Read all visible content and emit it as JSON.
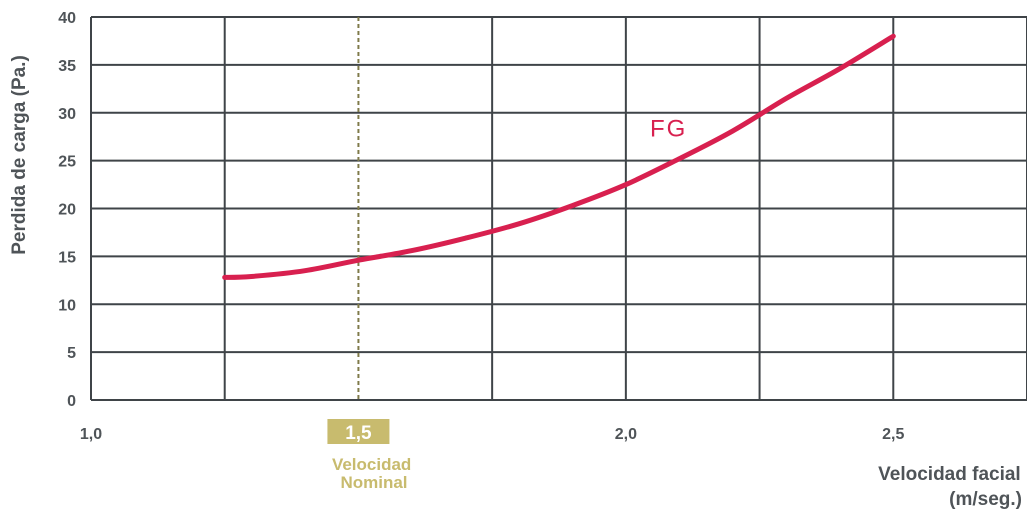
{
  "chart_data": {
    "type": "line",
    "xlabel": [
      "Velocidad facial",
      "(m/seg.)"
    ],
    "ylabel": "Perdida de carga (Pa.)",
    "xlim": [
      1.0,
      2.75
    ],
    "ylim": [
      0,
      40
    ],
    "x_ticks": [
      {
        "value": 1.0,
        "label": "1,0"
      },
      {
        "value": 1.5,
        "label": "1,5"
      },
      {
        "value": 2.0,
        "label": "2,0"
      },
      {
        "value": 2.5,
        "label": "2,5"
      }
    ],
    "y_ticks": [
      {
        "value": 0,
        "label": "0"
      },
      {
        "value": 5,
        "label": "5"
      },
      {
        "value": 10,
        "label": "10"
      },
      {
        "value": 15,
        "label": "15"
      },
      {
        "value": 20,
        "label": "20"
      },
      {
        "value": 25,
        "label": "25"
      },
      {
        "value": 30,
        "label": "30"
      },
      {
        "value": 35,
        "label": "35"
      },
      {
        "value": 40,
        "label": "40"
      }
    ],
    "grid": true,
    "grid_x_step": 0.25,
    "grid_y_step": 5,
    "reference_line": {
      "x": 1.5,
      "label": "1,5",
      "caption": [
        "Velocidad",
        "Nominal"
      ]
    },
    "series": [
      {
        "name": "FG",
        "color": "#d8204f",
        "x": [
          1.25,
          1.3,
          1.4,
          1.5,
          1.6,
          1.7,
          1.8,
          1.9,
          2.0,
          2.1,
          2.2,
          2.3,
          2.4,
          2.5
        ],
        "y": [
          12.8,
          12.9,
          13.5,
          14.6,
          15.6,
          16.9,
          18.4,
          20.3,
          22.5,
          25.2,
          28.1,
          31.5,
          34.6,
          38.0
        ]
      }
    ],
    "series_label_at": {
      "x": 2.08,
      "y": 27.5
    }
  },
  "colors": {
    "grid": "#3f4448",
    "text": "#4f5458",
    "nominal": "#c8bb6e",
    "series": "#d8204f"
  }
}
